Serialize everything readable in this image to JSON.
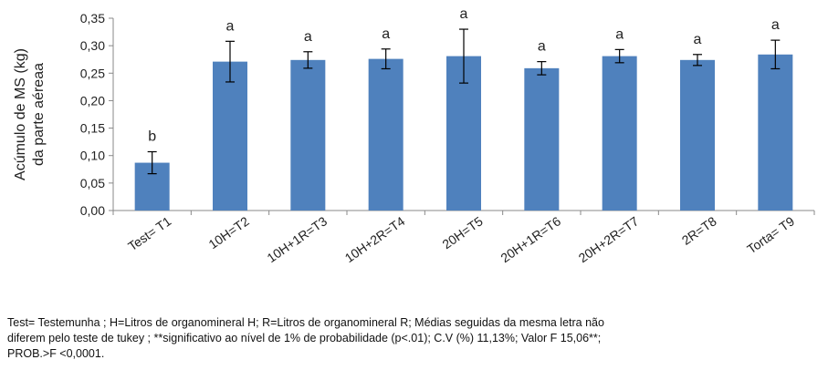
{
  "chart_data": {
    "type": "bar",
    "categories": [
      "Test= T1",
      "10H=T2",
      "10H+1R=T3",
      "10H+2R=T4",
      "20H=T5",
      "20H+1R=T6",
      "20H+2R=T7",
      "2R=T8",
      "Torta= T9"
    ],
    "values": [
      0.087,
      0.271,
      0.274,
      0.276,
      0.281,
      0.259,
      0.281,
      0.274,
      0.284
    ],
    "error": [
      0.02,
      0.037,
      0.015,
      0.018,
      0.049,
      0.012,
      0.012,
      0.01,
      0.026
    ],
    "significance": [
      "b",
      "a",
      "a",
      "a",
      "a",
      "a",
      "a",
      "a",
      "a"
    ],
    "ylabel_lines": [
      "Acúmulo de MS (kg)",
      "da parte aéreaa"
    ],
    "xlabel": "",
    "ylim": [
      0,
      0.35
    ],
    "yticks": [
      "0,00",
      "0,05",
      "0,10",
      "0,15",
      "0,20",
      "0,25",
      "0,30",
      "0,35"
    ],
    "grid": false,
    "bar_color": "#4f81bd"
  },
  "footnote": {
    "lines": [
      "Test= Testemunha ; H=Litros de organomineral H; R=Litros de organomineral R; Médias seguidas da mesma letra não",
      "diferem pelo teste de tukey ; **significativo ao nível de 1% de probabilidade (p<.01); C.V (%) 11,13%; Valor F 15,06**;",
      "PROB.>F  <0,0001."
    ]
  }
}
